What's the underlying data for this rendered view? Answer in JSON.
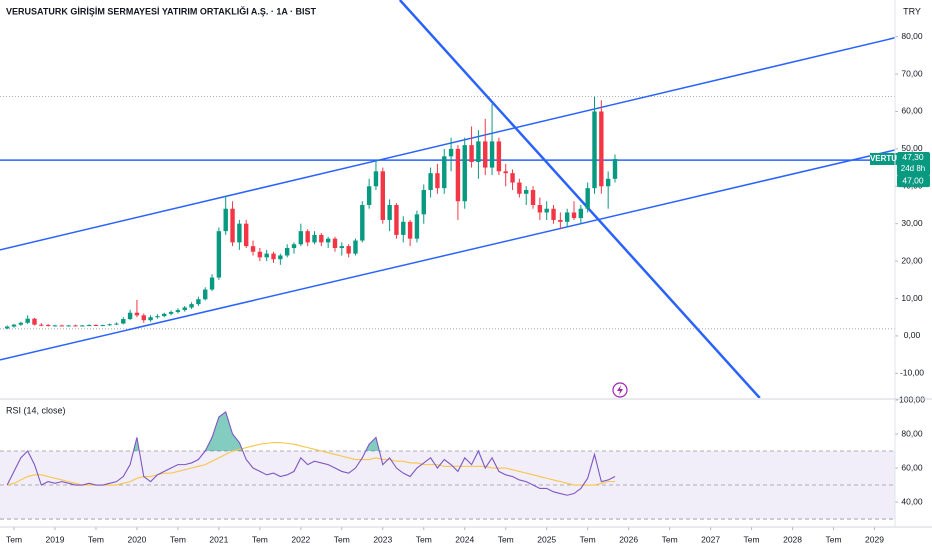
{
  "chart_data": {
    "type": "candlestick",
    "title": "VERUSATURK GİRİŞİM SERMAYESİ YATIRIM ORTAKLIĞI A.Ş. · 1A · BIST",
    "currency": "TRY",
    "symbol": "VERTU",
    "countdown": "24d 8h",
    "up_color": "#089981",
    "down_color": "#f23645",
    "candles": [
      [
        2.0,
        2.8,
        1.8,
        2.5
      ],
      [
        2.5,
        3.2,
        2.2,
        3.0
      ],
      [
        3.0,
        3.8,
        2.7,
        3.5
      ],
      [
        3.5,
        5.5,
        3.2,
        4.6
      ],
      [
        4.6,
        4.8,
        2.8,
        3.0
      ],
      [
        3.0,
        3.4,
        2.6,
        2.9
      ],
      [
        2.9,
        3.2,
        2.5,
        2.7
      ],
      [
        2.7,
        3.0,
        2.5,
        2.8
      ],
      [
        2.8,
        3.0,
        2.6,
        2.7
      ],
      [
        2.7,
        2.9,
        2.5,
        2.8
      ],
      [
        2.8,
        3.0,
        2.6,
        2.7
      ],
      [
        2.7,
        2.9,
        2.5,
        2.8
      ],
      [
        2.8,
        3.1,
        2.6,
        2.9
      ],
      [
        2.9,
        3.1,
        2.7,
        2.8
      ],
      [
        2.8,
        3.0,
        2.6,
        2.9
      ],
      [
        2.9,
        3.3,
        2.7,
        3.1
      ],
      [
        3.1,
        3.6,
        2.9,
        3.3
      ],
      [
        3.3,
        5.0,
        3.1,
        4.5
      ],
      [
        4.5,
        7.0,
        4.2,
        6.2
      ],
      [
        6.2,
        9.6,
        5.0,
        5.5
      ],
      [
        5.5,
        6.0,
        3.5,
        4.2
      ],
      [
        4.2,
        5.5,
        3.8,
        5.0
      ],
      [
        5.0,
        5.8,
        4.6,
        5.3
      ],
      [
        5.3,
        6.2,
        5.0,
        5.9
      ],
      [
        5.9,
        6.8,
        5.5,
        6.4
      ],
      [
        6.4,
        7.4,
        6.0,
        6.9
      ],
      [
        6.9,
        8.0,
        6.5,
        7.6
      ],
      [
        7.6,
        9.0,
        7.2,
        8.5
      ],
      [
        8.5,
        10.5,
        8.0,
        9.8
      ],
      [
        9.8,
        13.0,
        9.5,
        12.4
      ],
      [
        12.4,
        16.5,
        12.0,
        15.6
      ],
      [
        15.6,
        29.0,
        15.0,
        28.0
      ],
      [
        28.0,
        37.5,
        27.0,
        34.0
      ],
      [
        34.0,
        36.0,
        24.0,
        25.0
      ],
      [
        25.0,
        31.0,
        23.0,
        30.0
      ],
      [
        30.0,
        31.0,
        23.5,
        24.0
      ],
      [
        24.0,
        25.5,
        21.5,
        22.5
      ],
      [
        22.5,
        23.5,
        20.0,
        21.0
      ],
      [
        21.0,
        23.0,
        20.0,
        22.0
      ],
      [
        22.0,
        22.5,
        19.5,
        20.5
      ],
      [
        20.5,
        22.0,
        19.0,
        21.5
      ],
      [
        21.5,
        24.5,
        21.0,
        23.5
      ],
      [
        23.5,
        25.0,
        22.0,
        24.5
      ],
      [
        24.5,
        30.0,
        24.0,
        28.0
      ],
      [
        28.0,
        28.5,
        24.0,
        25.0
      ],
      [
        25.0,
        28.0,
        24.5,
        27.0
      ],
      [
        27.0,
        27.5,
        24.0,
        25.0
      ],
      [
        25.0,
        26.5,
        23.5,
        26.0
      ],
      [
        26.0,
        26.5,
        22.5,
        23.5
      ],
      [
        23.5,
        25.0,
        21.5,
        24.0
      ],
      [
        24.0,
        24.5,
        21.0,
        22.0
      ],
      [
        22.0,
        26.0,
        21.5,
        25.5
      ],
      [
        25.5,
        36.0,
        25.0,
        35.0
      ],
      [
        35.0,
        42.0,
        34.0,
        40.0
      ],
      [
        40.0,
        47.0,
        39.0,
        44.0
      ],
      [
        44.0,
        45.0,
        30.0,
        31.0
      ],
      [
        31.0,
        36.5,
        28.0,
        35.0
      ],
      [
        35.0,
        35.5,
        26.0,
        27.0
      ],
      [
        27.0,
        32.0,
        25.0,
        30.5
      ],
      [
        30.5,
        31.0,
        24.0,
        26.0
      ],
      [
        26.0,
        33.5,
        25.0,
        32.5
      ],
      [
        32.5,
        40.5,
        30.0,
        39.0
      ],
      [
        39.0,
        45.0,
        37.0,
        43.5
      ],
      [
        43.5,
        46.0,
        38.0,
        39.5
      ],
      [
        39.5,
        50.0,
        38.0,
        48.0
      ],
      [
        48.0,
        53.0,
        44.0,
        50.0
      ],
      [
        50.0,
        51.0,
        31.0,
        36.0
      ],
      [
        36.0,
        53.0,
        34.0,
        51.0
      ],
      [
        51.0,
        56.0,
        45.0,
        46.5
      ],
      [
        46.5,
        55.0,
        42.0,
        52.0
      ],
      [
        52.0,
        58.0,
        43.0,
        45.0
      ],
      [
        45.0,
        62.0,
        43.0,
        52.0
      ],
      [
        52.0,
        53.0,
        43.0,
        44.0
      ],
      [
        44.0,
        46.0,
        40.0,
        43.5
      ],
      [
        43.5,
        44.5,
        39.0,
        41.0
      ],
      [
        41.0,
        42.0,
        37.0,
        38.0
      ],
      [
        38.0,
        40.0,
        35.0,
        39.0
      ],
      [
        39.0,
        40.0,
        34.0,
        35.0
      ],
      [
        35.0,
        37.0,
        31.0,
        33.0
      ],
      [
        33.0,
        36.0,
        31.0,
        34.0
      ],
      [
        34.0,
        35.0,
        30.0,
        31.0
      ],
      [
        31.0,
        33.0,
        28.5,
        30.5
      ],
      [
        30.5,
        34.0,
        29.0,
        33.0
      ],
      [
        33.0,
        36.0,
        31.0,
        31.5
      ],
      [
        31.5,
        35.0,
        30.0,
        34.0
      ],
      [
        34.0,
        41.0,
        33.0,
        39.5
      ],
      [
        39.5,
        64.0,
        38.0,
        60.0
      ],
      [
        60.0,
        63.0,
        38.0,
        40.0
      ],
      [
        40.0,
        44.0,
        34.0,
        42.0
      ],
      [
        42.0,
        48.5,
        41.0,
        47.3
      ]
    ],
    "last_price": {
      "value": 47.3,
      "label": "47,30"
    },
    "hline": {
      "value": 47.0,
      "label": "47,00",
      "color": "#2962ff"
    },
    "dotted_levels": [
      64,
      1.9
    ],
    "trendlines": [
      {
        "x": [
          -1.05,
          130
        ],
        "y": [
          23.0,
          79.7
        ],
        "color": "#2962ff"
      },
      {
        "x": [
          -1.05,
          130
        ],
        "y": [
          -6.4,
          49.7
        ],
        "color": "#2962ff"
      },
      {
        "x": [
          57.5,
          110.2
        ],
        "y": [
          89.8,
          -16.6
        ],
        "color": "#2962ff"
      }
    ],
    "xlim": [
      -1.05,
      130
    ],
    "xticks": [
      {
        "value": 1,
        "label": "Tem"
      },
      {
        "value": 7,
        "label": "2019"
      },
      {
        "value": 13,
        "label": "Tem"
      },
      {
        "value": 19,
        "label": "2020"
      },
      {
        "value": 25,
        "label": "Tem"
      },
      {
        "value": 31,
        "label": "2021"
      },
      {
        "value": 37,
        "label": "Tem"
      },
      {
        "value": 43,
        "label": "2022"
      },
      {
        "value": 49,
        "label": "Tem"
      },
      {
        "value": 55,
        "label": "2023"
      },
      {
        "value": 61,
        "label": "Tem"
      },
      {
        "value": 67,
        "label": "2024"
      },
      {
        "value": 73,
        "label": "Tem"
      },
      {
        "value": 79,
        "label": "2025"
      },
      {
        "value": 85,
        "label": "Tem"
      },
      {
        "value": 91,
        "label": "2026"
      },
      {
        "value": 97,
        "label": "Tem"
      },
      {
        "value": 103,
        "label": "2027"
      },
      {
        "value": 109,
        "label": "Tem"
      },
      {
        "value": 115,
        "label": "2028"
      },
      {
        "value": 121,
        "label": "Tem"
      },
      {
        "value": 127,
        "label": "2029"
      }
    ],
    "ylim": [
      -16.6,
      89.8
    ],
    "yticks": [
      {
        "value": 80,
        "label": "80,00"
      },
      {
        "value": 70,
        "label": "70,00"
      },
      {
        "value": 60,
        "label": "60,00"
      },
      {
        "value": 50,
        "label": "50,00"
      },
      {
        "value": 40,
        "label": "40,00"
      },
      {
        "value": 30,
        "label": "30,00"
      },
      {
        "value": 20,
        "label": "20,00"
      },
      {
        "value": 10,
        "label": "10,00"
      },
      {
        "value": 0,
        "label": "0,00"
      },
      {
        "value": -10,
        "label": "-10,00"
      }
    ],
    "rsi": {
      "title": "RSI (14, close)",
      "color": "#7e57c2",
      "ma_color": "#f7c548",
      "fill_color": "#089981",
      "band_color": "#7e57c2",
      "values": [
        50,
        58,
        66,
        70,
        62,
        50,
        52,
        51,
        52,
        51,
        50,
        50,
        51,
        50,
        50,
        51,
        52,
        55,
        62,
        78,
        55,
        52,
        56,
        58,
        60,
        62,
        62,
        63,
        65,
        70,
        78,
        90,
        93,
        80,
        75,
        65,
        60,
        58,
        56,
        57,
        55,
        56,
        58,
        66,
        62,
        64,
        63,
        62,
        60,
        58,
        57,
        60,
        66,
        74,
        78,
        62,
        66,
        60,
        57,
        55,
        60,
        63,
        66,
        60,
        65,
        62,
        58,
        66,
        62,
        70,
        60,
        66,
        58,
        56,
        55,
        53,
        52,
        50,
        48,
        48,
        46,
        45,
        44,
        45,
        48,
        54,
        68,
        52,
        53,
        55
      ],
      "ma": [
        50,
        51,
        53,
        55,
        56,
        56,
        55,
        54,
        53,
        52,
        51,
        50,
        50,
        50,
        50,
        50,
        50,
        51,
        52,
        54,
        55,
        55,
        56,
        57,
        57,
        58,
        59,
        60,
        61,
        62,
        64,
        66,
        68,
        70,
        71,
        72,
        73,
        74,
        74.5,
        75,
        75,
        74.5,
        74,
        73,
        72,
        71,
        70,
        69,
        68,
        67,
        66,
        65,
        65,
        65,
        66,
        65,
        65,
        64,
        64,
        63,
        63,
        62,
        62,
        62,
        61,
        61,
        61,
        61,
        61,
        61,
        61,
        60,
        60,
        60,
        59,
        58,
        57,
        56,
        55,
        54,
        53,
        52,
        51,
        50,
        50,
        50,
        50,
        51,
        52,
        52
      ],
      "bands": [
        70,
        50,
        30
      ],
      "ylim": [
        26.5,
        100
      ],
      "yticks": [
        {
          "value": 100,
          "label": "100,00"
        },
        {
          "value": 80,
          "label": "80,00"
        },
        {
          "value": 60,
          "label": "60,00"
        },
        {
          "value": 40,
          "label": "40,00"
        }
      ]
    }
  }
}
